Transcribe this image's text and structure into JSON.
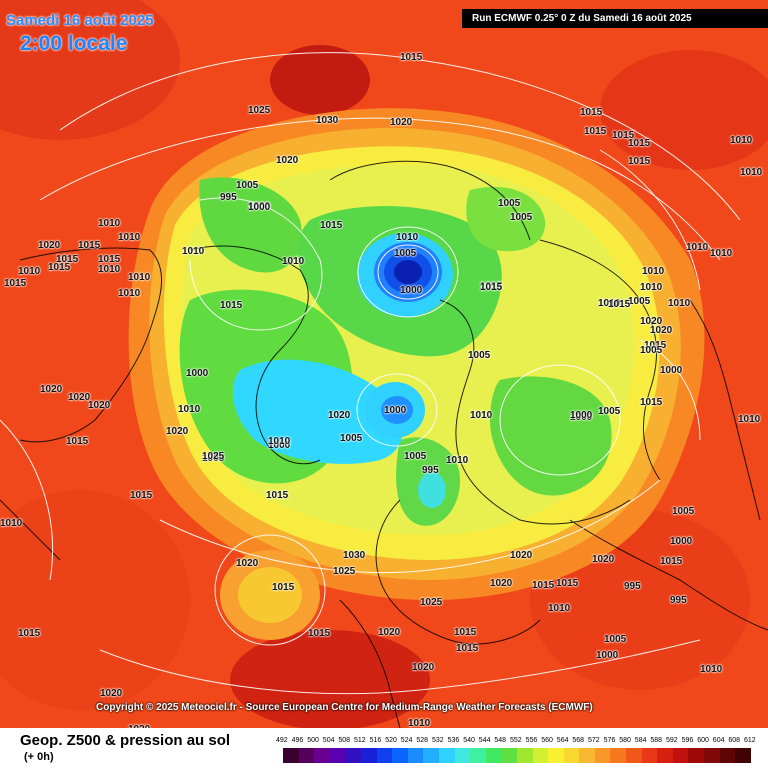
{
  "header": {
    "date": "Samedi 16 août 2025",
    "time": "2:00 locale",
    "run": "Run ECMWF 0.25° 0 Z du Samedi 16 août 2025"
  },
  "copyright": "Copyright © 2025 Meteociel.fr - Source European Centre for Medium-Range Weather Forecasts (ECMWF)",
  "legend": {
    "title": "Geop. Z500 & pression au sol",
    "subtitle": "(+ 0h)",
    "ticks": [
      "492",
      "496",
      "500",
      "504",
      "508",
      "512",
      "516",
      "520",
      "524",
      "528",
      "532",
      "536",
      "540",
      "544",
      "548",
      "552",
      "556",
      "560",
      "564",
      "568",
      "572",
      "576",
      "580",
      "584",
      "588",
      "592",
      "596",
      "600",
      "604",
      "608",
      "612"
    ],
    "colors": [
      "#3a0030",
      "#55005c",
      "#6a0090",
      "#5a00b0",
      "#3010c0",
      "#1a20d8",
      "#1040f0",
      "#0a66ff",
      "#1a8cff",
      "#20b0ff",
      "#30d0ff",
      "#40e8e0",
      "#40f0a0",
      "#40e860",
      "#60e040",
      "#a0e830",
      "#d0f030",
      "#f8f030",
      "#f8d830",
      "#f8b830",
      "#f89828",
      "#f87820",
      "#f05818",
      "#e83818",
      "#d82010",
      "#c01010",
      "#a00808",
      "#800808",
      "#600404",
      "#400202"
    ]
  },
  "isobars": [
    {
      "t": "1015"
    },
    {
      "t": "1025"
    },
    {
      "t": "1030"
    },
    {
      "t": "1020"
    },
    {
      "t": "1020"
    },
    {
      "t": "1015"
    },
    {
      "t": "1015"
    },
    {
      "t": "1015"
    },
    {
      "t": "1015"
    },
    {
      "t": "1010"
    },
    {
      "t": "1015"
    },
    {
      "t": "1010"
    },
    {
      "t": "1005"
    },
    {
      "t": "995"
    },
    {
      "t": "1000"
    },
    {
      "t": "1010"
    },
    {
      "t": "1020"
    },
    {
      "t": "1015"
    },
    {
      "t": "1015"
    },
    {
      "t": "1010"
    },
    {
      "t": "1010"
    },
    {
      "t": "1015"
    },
    {
      "t": "1010"
    },
    {
      "t": "1010"
    },
    {
      "t": "1015"
    },
    {
      "t": "1015"
    },
    {
      "t": "1010"
    },
    {
      "t": "1010"
    },
    {
      "t": "1015"
    },
    {
      "t": "1005"
    },
    {
      "t": "1000"
    },
    {
      "t": "1005"
    },
    {
      "t": "1010"
    },
    {
      "t": "1005"
    },
    {
      "t": "1000"
    },
    {
      "t": "1015"
    },
    {
      "t": "1015"
    },
    {
      "t": "1010"
    },
    {
      "t": "1010"
    },
    {
      "t": "1005"
    },
    {
      "t": "1010"
    },
    {
      "t": "1010"
    },
    {
      "t": "1010"
    },
    {
      "t": "1020"
    },
    {
      "t": "1020"
    },
    {
      "t": "1020"
    },
    {
      "t": "1015"
    },
    {
      "t": "1000"
    },
    {
      "t": "1010"
    },
    {
      "t": "1020"
    },
    {
      "t": "1005"
    },
    {
      "t": "1000"
    },
    {
      "t": "1020"
    },
    {
      "t": "1010"
    },
    {
      "t": "1000"
    },
    {
      "t": "1005"
    },
    {
      "t": "1005"
    },
    {
      "t": "1025"
    },
    {
      "t": "1010"
    },
    {
      "t": "1005"
    },
    {
      "t": "1000"
    },
    {
      "t": "995"
    },
    {
      "t": "1010"
    },
    {
      "t": "1015"
    },
    {
      "t": "1000"
    },
    {
      "t": "1005"
    },
    {
      "t": "1015"
    },
    {
      "t": "1010"
    },
    {
      "t": "1015"
    },
    {
      "t": "1020"
    },
    {
      "t": "1020"
    },
    {
      "t": "1015"
    },
    {
      "t": "1010"
    },
    {
      "t": "1005"
    },
    {
      "t": "1000"
    },
    {
      "t": "1030"
    },
    {
      "t": "1025"
    },
    {
      "t": "1025"
    },
    {
      "t": "1020"
    },
    {
      "t": "1015"
    },
    {
      "t": "1020"
    },
    {
      "t": "1015"
    },
    {
      "t": "1020"
    },
    {
      "t": "1015"
    },
    {
      "t": "995"
    },
    {
      "t": "995"
    },
    {
      "t": "1010"
    },
    {
      "t": "1005"
    },
    {
      "t": "1000"
    },
    {
      "t": "1015"
    },
    {
      "t": "1020"
    },
    {
      "t": "1005"
    },
    {
      "t": "1000"
    },
    {
      "t": "1010"
    },
    {
      "t": "1020"
    },
    {
      "t": "1015"
    },
    {
      "t": "1010"
    },
    {
      "t": "1015"
    },
    {
      "t": "1015"
    },
    {
      "t": "1010"
    },
    {
      "t": "1020"
    },
    {
      "t": "1015"
    },
    {
      "t": "1015"
    },
    {
      "t": "1010"
    },
    {
      "t": "1020"
    },
    {
      "t": "1020"
    },
    {
      "t": "1015"
    }
  ],
  "map_features": {
    "lows": [
      {
        "name": "arctic-low",
        "value": "1000"
      },
      {
        "name": "scandinavia-low",
        "value": "1000"
      },
      {
        "name": "siberia-low",
        "value": "1000"
      }
    ],
    "background_colors": {
      "hot": "#f03a10",
      "warm": "#f87420",
      "mid": "#f8b030",
      "yellow": "#f8ec40",
      "green": "#60dc40",
      "cyan": "#30d8ff",
      "blue": "#1050e8",
      "deep": "#0a20b0"
    }
  }
}
